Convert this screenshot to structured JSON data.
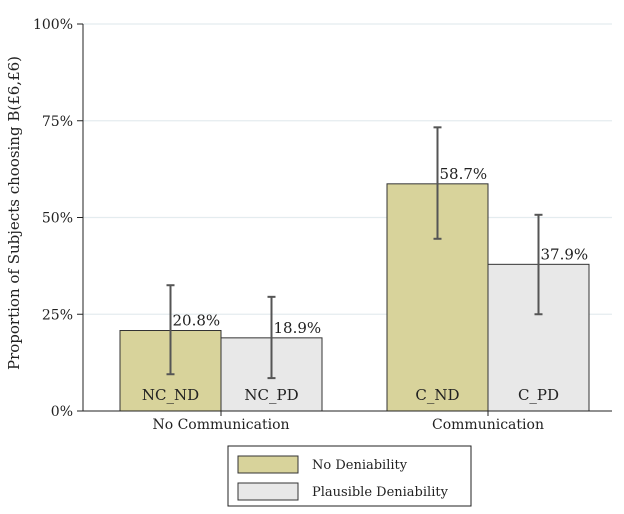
{
  "chart_data": {
    "type": "bar",
    "title": "",
    "xlabel": "",
    "ylabel": "Proportion of Subjects choosing B(£6,£6)",
    "ylim": [
      0,
      100
    ],
    "yticks": [
      {
        "value": 0,
        "label": "0%"
      },
      {
        "value": 25,
        "label": "25%"
      },
      {
        "value": 50,
        "label": "50%"
      },
      {
        "value": 75,
        "label": "75%"
      },
      {
        "value": 100,
        "label": "100%"
      }
    ],
    "grid": true,
    "categories": [
      "No Communication",
      "Communication"
    ],
    "series": [
      {
        "name": "No Deniability",
        "color": "#d8d39b",
        "values": [
          20.8,
          58.7
        ],
        "value_labels": [
          "20.8%",
          "58.7%"
        ],
        "bar_labels": [
          "NC_ND",
          "C_ND"
        ],
        "error_low": [
          9.5,
          44.5
        ],
        "error_high": [
          32.5,
          73.3
        ]
      },
      {
        "name": "Plausible Deniability",
        "color": "#e8e8e8",
        "values": [
          18.9,
          37.9
        ],
        "value_labels": [
          "18.9%",
          "37.9%"
        ],
        "bar_labels": [
          "NC_PD",
          "C_PD"
        ],
        "error_low": [
          8.5,
          25.0
        ],
        "error_high": [
          29.5,
          50.7
        ]
      }
    ],
    "legend": {
      "placement": "bottom-center",
      "entries": [
        "No Deniability",
        "Plausible Deniability"
      ]
    },
    "colors": {
      "axis": "#222222",
      "grid": "#e4ecef",
      "error_bar": "#555555"
    }
  }
}
